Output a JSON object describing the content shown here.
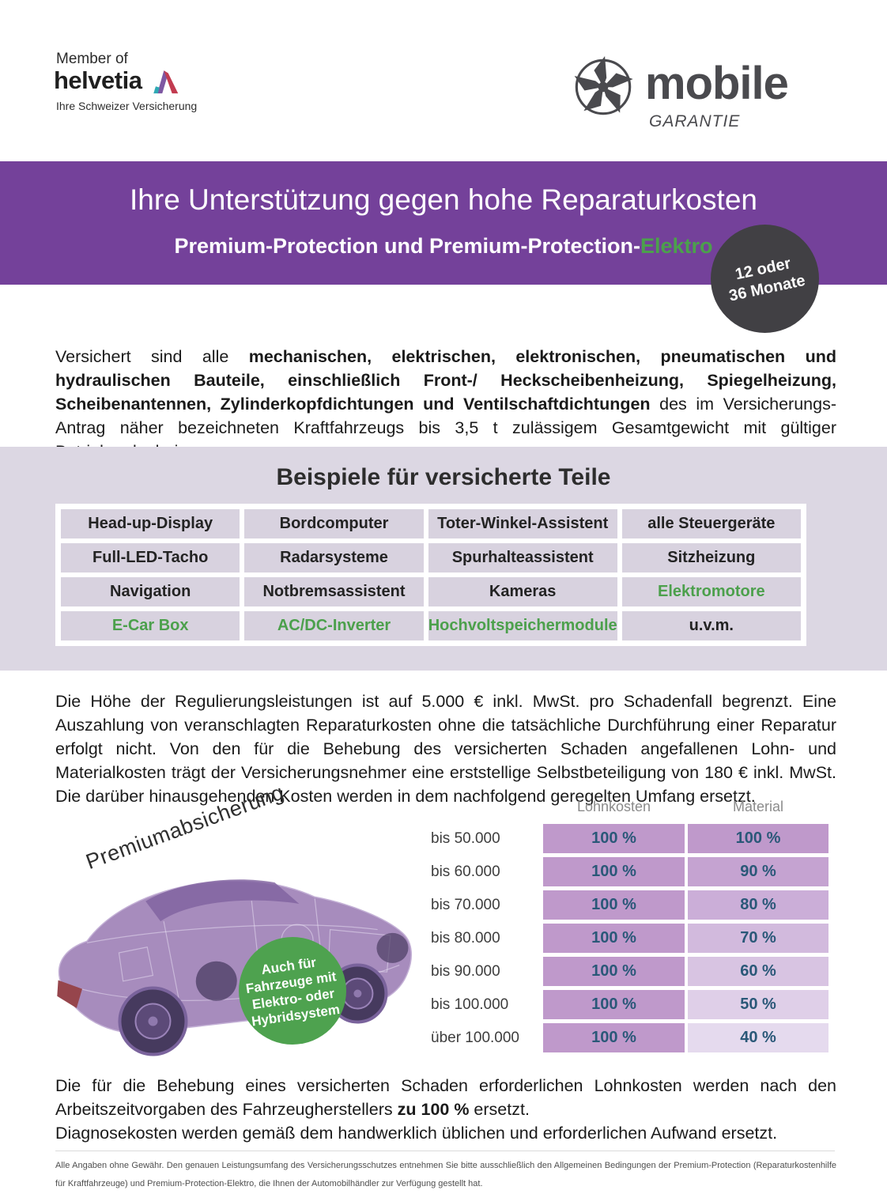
{
  "theme": {
    "purple": "#74419a",
    "lavender": "#dcd7e3",
    "cell": "#d8d2df",
    "green": "#4ca04c",
    "badgedark": "#414044",
    "circlegreen": "#4ea24f",
    "valblue": "#2a5878",
    "lohn": "#bf99cb"
  },
  "header": {
    "member_of": "Member of",
    "helvetia": "helvetia",
    "helvetia_tagline": "Ihre Schweizer Versicherung",
    "brand": "mobile",
    "brand_sub": "GARANTIE"
  },
  "banner": {
    "title": "Ihre Unterstützung gegen hohe Reparaturkosten",
    "subtitle_prefix": "Premium-Protection und Premium-Protection-",
    "subtitle_highlight": "Elektro",
    "badge_line1": "12 oder",
    "badge_line2": "36 Monate"
  },
  "intro": {
    "segments": [
      {
        "text": "Versichert sind alle ",
        "bold": false
      },
      {
        "text": "mechanischen, elektrischen, elektronischen, pneumatischen und hydraulischen Bauteile, einschließlich Front-/ Heckscheibenheizung, Spiegelheizung, Scheibenantennen, Zylinderkopfdichtungen und Ventilschaftdichtungen",
        "bold": true
      },
      {
        "text": " des im Versicherungs-Antrag näher bezeichneten Kraftfahrzeugs bis 3,5 t zulässigem Gesamtgewicht mit gültiger Betriebserlaubnis.",
        "bold": false
      }
    ]
  },
  "examples": {
    "title": "Beispiele für versicherte Teile",
    "rows": [
      [
        {
          "label": "Head-up-Display",
          "green": false
        },
        {
          "label": "Bordcomputer",
          "green": false
        },
        {
          "label": "Toter-Winkel-Assistent",
          "green": false
        },
        {
          "label": "alle Steuergeräte",
          "green": false
        }
      ],
      [
        {
          "label": "Full-LED-Tacho",
          "green": false
        },
        {
          "label": "Radarsysteme",
          "green": false
        },
        {
          "label": "Spurhalteassistent",
          "green": false
        },
        {
          "label": "Sitzheizung",
          "green": false
        }
      ],
      [
        {
          "label": "Navigation",
          "green": false
        },
        {
          "label": "Notbremsassistent",
          "green": false
        },
        {
          "label": "Kameras",
          "green": false
        },
        {
          "label": "Elektromotore",
          "green": true
        }
      ],
      [
        {
          "label": "E-Car Box",
          "green": true
        },
        {
          "label": "AC/DC-Inverter",
          "green": true
        },
        {
          "label": "Hochvoltspeichermodule",
          "green": true
        },
        {
          "label": "u.v.m.",
          "green": false
        }
      ]
    ]
  },
  "limits": {
    "segments": [
      {
        "text": "Die Höhe der Regulierungsleistungen ist auf 5.000 € inkl. MwSt. pro Schadenfall begrenzt. Eine Auszahlung von veranschlagten Reparaturkosten ohne die tatsächliche Durchführung einer Reparatur erfolgt nicht. Von den für die Behebung des versicherten Schaden angefallenen Lohn- und Materialkosten trägt der Versicherungsnehmer eine erststellige Selbstbeteiligung von 180 € inkl. MwSt. Die darüber hinausgehenden Kosten werden in dem nachfolgend geregelten Umfang ersetzt.",
        "bold": false
      }
    ]
  },
  "premium": {
    "label": "Premiumabsicherung",
    "badge_line1": "Auch für",
    "badge_line2": "Fahrzeuge mit",
    "badge_line3": "Elektro- oder",
    "badge_line4": "Hybridsystem"
  },
  "coverage": {
    "header_labor": "Lohnkosten",
    "header_material": "Material",
    "rows": [
      {
        "label": "bis 50.000",
        "lohnkosten": "100 %",
        "material": "100 %",
        "material_bg": "#bf99cb"
      },
      {
        "label": "bis 60.000",
        "lohnkosten": "100 %",
        "material": "90 %",
        "material_bg": "#c5a3d1"
      },
      {
        "label": "bis 70.000",
        "lohnkosten": "100 %",
        "material": "80 %",
        "material_bg": "#cbaed8"
      },
      {
        "label": "bis 80.000",
        "lohnkosten": "100 %",
        "material": "70 %",
        "material_bg": "#d2badd"
      },
      {
        "label": "bis 90.000",
        "lohnkosten": "100 %",
        "material": "60 %",
        "material_bg": "#d8c4e2"
      },
      {
        "label": "bis 100.000",
        "lohnkosten": "100 %",
        "material": "50 %",
        "material_bg": "#dfcfe8"
      },
      {
        "label": "über 100.000",
        "lohnkosten": "100 %",
        "material": "40 %",
        "material_bg": "#e5daee"
      }
    ]
  },
  "labor": {
    "segments": [
      {
        "text": "Die für die Behebung eines versicherten Schaden erforderlichen Lohnkosten werden nach den Arbeitszeitvorgaben des Fahrzeugherstellers ",
        "bold": false
      },
      {
        "text": "zu 100 %",
        "bold": true
      },
      {
        "text": " ersetzt.",
        "bold": false
      }
    ],
    "diagnose": "Diagnosekosten werden gemäß dem handwerklich üblichen und erforderlichen Aufwand ersetzt."
  },
  "footnote": {
    "text": "Alle Angaben ohne Gewähr. Den genauen Leistungsumfang des Versicherungsschutzes entnehmen Sie bitte ausschließlich den Allgemeinen Bedingungen der Premium-Protection (Reparaturkostenhilfe für Kraftfahrzeuge) und Premium-Protection-Elektro, die Ihnen der Automobilhändler zur Verfügung gestellt hat."
  }
}
